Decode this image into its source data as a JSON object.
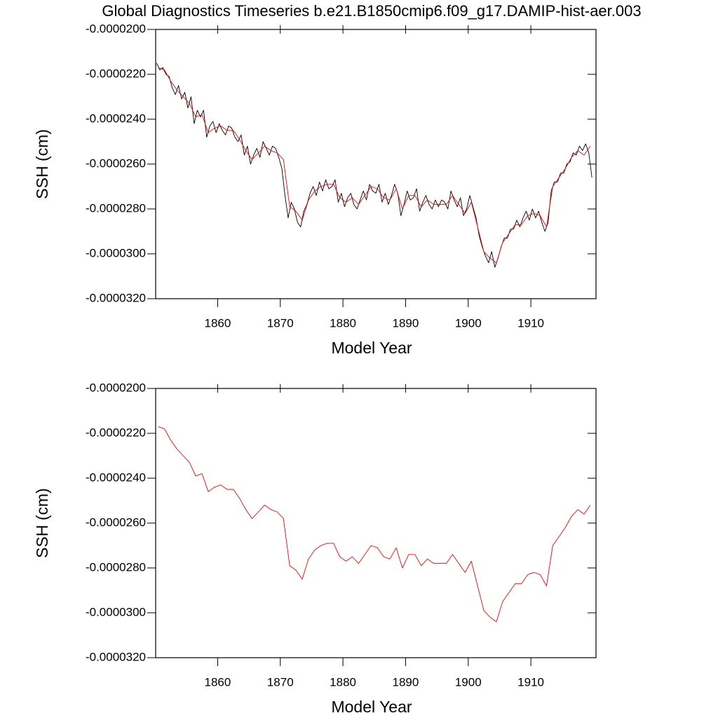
{
  "chart_data": [
    {
      "type": "line",
      "title": "Global Diagnostics Timeseries b.e21.B1850cmip6.f09_g17.DAMIP-hist-aer.003",
      "xlabel": "Model Year",
      "ylabel": "SSH (cm)",
      "xlim": [
        1850.1,
        1920.4
      ],
      "ylim": [
        -3.2e-05,
        -2e-05
      ],
      "xticks": [
        1860,
        1870,
        1880,
        1890,
        1900,
        1910
      ],
      "yticks": [
        {
          "value": -2e-05,
          "label": "-0.0000200"
        },
        {
          "value": -2.2e-05,
          "label": "-0.0000220"
        },
        {
          "value": -2.4e-05,
          "label": "-0.0000240"
        },
        {
          "value": -2.6e-05,
          "label": "-0.0000260"
        },
        {
          "value": -2.8e-05,
          "label": "-0.0000280"
        },
        {
          "value": -3e-05,
          "label": "-0.0000300"
        },
        {
          "value": -3.2e-05,
          "label": "-0.0000320"
        }
      ],
      "series": [
        {
          "color": "#000000",
          "x": [
            1850.25,
            1850.75,
            1851.25,
            1851.75,
            1852.25,
            1852.75,
            1853.25,
            1853.75,
            1854.25,
            1854.75,
            1855.25,
            1855.75,
            1856.25,
            1856.75,
            1857.25,
            1857.75,
            1858.25,
            1858.75,
            1859.25,
            1859.75,
            1860.25,
            1860.75,
            1861.25,
            1861.75,
            1862.25,
            1862.75,
            1863.25,
            1863.75,
            1864.25,
            1864.75,
            1865.25,
            1865.75,
            1866.25,
            1866.75,
            1867.25,
            1867.75,
            1868.25,
            1868.75,
            1869.25,
            1869.75,
            1870.25,
            1870.75,
            1871.25,
            1871.75,
            1872.25,
            1872.75,
            1873.25,
            1873.75,
            1874.25,
            1874.75,
            1875.25,
            1875.75,
            1876.25,
            1876.75,
            1877.25,
            1877.75,
            1878.25,
            1878.75,
            1879.25,
            1879.75,
            1880.25,
            1880.75,
            1881.25,
            1881.75,
            1882.25,
            1882.75,
            1883.25,
            1883.75,
            1884.25,
            1884.75,
            1885.25,
            1885.75,
            1886.25,
            1886.75,
            1887.25,
            1887.75,
            1888.25,
            1888.75,
            1889.25,
            1889.75,
            1890.25,
            1890.75,
            1891.25,
            1891.75,
            1892.25,
            1892.75,
            1893.25,
            1893.75,
            1894.25,
            1894.75,
            1895.25,
            1895.75,
            1896.25,
            1896.75,
            1897.25,
            1897.75,
            1898.25,
            1898.75,
            1899.25,
            1899.75,
            1900.25,
            1900.75,
            1901.25,
            1901.75,
            1902.25,
            1902.75,
            1903.25,
            1903.75,
            1904.25,
            1904.75,
            1905.25,
            1905.75,
            1906.25,
            1906.75,
            1907.25,
            1907.75,
            1908.25,
            1908.75,
            1909.25,
            1909.75,
            1910.25,
            1910.75,
            1911.25,
            1911.75,
            1912.25,
            1912.75,
            1913.25,
            1913.75,
            1914.25,
            1914.75,
            1915.25,
            1915.75,
            1916.25,
            1916.75,
            1917.25,
            1917.75,
            1918.25,
            1918.75,
            1919.25,
            1919.75
          ],
          "values": [
            -2.15e-05,
            -2.18e-05,
            -2.17e-05,
            -2.2e-05,
            -2.21e-05,
            -2.26e-05,
            -2.29e-05,
            -2.25e-05,
            -2.31e-05,
            -2.28e-05,
            -2.35e-05,
            -2.3e-05,
            -2.42e-05,
            -2.36e-05,
            -2.39e-05,
            -2.36e-05,
            -2.48e-05,
            -2.43e-05,
            -2.41e-05,
            -2.46e-05,
            -2.42e-05,
            -2.45e-05,
            -2.47e-05,
            -2.43e-05,
            -2.44e-05,
            -2.48e-05,
            -2.5e-05,
            -2.47e-05,
            -2.56e-05,
            -2.52e-05,
            -2.6e-05,
            -2.56e-05,
            -2.53e-05,
            -2.57e-05,
            -2.5e-05,
            -2.53e-05,
            -2.56e-05,
            -2.52e-05,
            -2.53e-05,
            -2.57e-05,
            -2.62e-05,
            -2.74e-05,
            -2.84e-05,
            -2.77e-05,
            -2.8e-05,
            -2.86e-05,
            -2.88e-05,
            -2.81e-05,
            -2.78e-05,
            -2.73e-05,
            -2.7e-05,
            -2.74e-05,
            -2.68e-05,
            -2.72e-05,
            -2.67e-05,
            -2.71e-05,
            -2.7e-05,
            -2.67e-05,
            -2.77e-05,
            -2.73e-05,
            -2.79e-05,
            -2.75e-05,
            -2.73e-05,
            -2.78e-05,
            -2.8e-05,
            -2.76e-05,
            -2.72e-05,
            -2.76e-05,
            -2.69e-05,
            -2.72e-05,
            -2.73e-05,
            -2.69e-05,
            -2.77e-05,
            -2.73e-05,
            -2.78e-05,
            -2.74e-05,
            -2.69e-05,
            -2.73e-05,
            -2.83e-05,
            -2.78e-05,
            -2.72e-05,
            -2.76e-05,
            -2.75e-05,
            -2.71e-05,
            -2.81e-05,
            -2.77e-05,
            -2.74e-05,
            -2.78e-05,
            -2.8e-05,
            -2.76e-05,
            -2.79e-05,
            -2.76e-05,
            -2.77e-05,
            -2.8e-05,
            -2.72e-05,
            -2.76e-05,
            -2.79e-05,
            -2.75e-05,
            -2.83e-05,
            -2.8e-05,
            -2.74e-05,
            -2.79e-05,
            -2.84e-05,
            -2.92e-05,
            -2.97e-05,
            -3.01e-05,
            -3.04e-05,
            -2.99e-05,
            -3.06e-05,
            -3.02e-05,
            -2.97e-05,
            -2.93e-05,
            -2.93e-05,
            -2.89e-05,
            -2.89e-05,
            -2.85e-05,
            -2.88e-05,
            -2.84e-05,
            -2.81e-05,
            -2.85e-05,
            -2.8e-05,
            -2.84e-05,
            -2.81e-05,
            -2.86e-05,
            -2.9e-05,
            -2.86e-05,
            -2.72e-05,
            -2.68e-05,
            -2.68e-05,
            -2.64e-05,
            -2.64e-05,
            -2.6e-05,
            -2.59e-05,
            -2.55e-05,
            -2.56e-05,
            -2.52e-05,
            -2.54e-05,
            -2.51e-05,
            -2.55e-05,
            -2.66e-05
          ]
        },
        {
          "color": "#ff0000",
          "x": [
            1850.5,
            1851.5,
            1852.5,
            1853.5,
            1854.5,
            1855.5,
            1856.5,
            1857.5,
            1858.5,
            1859.5,
            1860.5,
            1861.5,
            1862.5,
            1863.5,
            1864.5,
            1865.5,
            1866.5,
            1867.5,
            1868.5,
            1869.5,
            1870.5,
            1871.5,
            1872.5,
            1873.5,
            1874.5,
            1875.5,
            1876.5,
            1877.5,
            1878.5,
            1879.5,
            1880.5,
            1881.5,
            1882.5,
            1883.5,
            1884.5,
            1885.5,
            1886.5,
            1887.5,
            1888.5,
            1889.5,
            1890.5,
            1891.5,
            1892.5,
            1893.5,
            1894.5,
            1895.5,
            1896.5,
            1897.5,
            1898.5,
            1899.5,
            1900.5,
            1901.5,
            1902.5,
            1903.5,
            1904.5,
            1905.5,
            1906.5,
            1907.5,
            1908.5,
            1909.5,
            1910.5,
            1911.5,
            1912.5,
            1913.5,
            1914.5,
            1915.5,
            1916.5,
            1917.5,
            1918.5,
            1919.5
          ],
          "values": [
            -2.17e-05,
            -2.18e-05,
            -2.23e-05,
            -2.27e-05,
            -2.3e-05,
            -2.33e-05,
            -2.39e-05,
            -2.38e-05,
            -2.46e-05,
            -2.44e-05,
            -2.43e-05,
            -2.45e-05,
            -2.45e-05,
            -2.49e-05,
            -2.54e-05,
            -2.58e-05,
            -2.55e-05,
            -2.52e-05,
            -2.54e-05,
            -2.55e-05,
            -2.58e-05,
            -2.79e-05,
            -2.81e-05,
            -2.85e-05,
            -2.76e-05,
            -2.72e-05,
            -2.7e-05,
            -2.69e-05,
            -2.69e-05,
            -2.75e-05,
            -2.77e-05,
            -2.75e-05,
            -2.78e-05,
            -2.74e-05,
            -2.7e-05,
            -2.71e-05,
            -2.75e-05,
            -2.76e-05,
            -2.71e-05,
            -2.8e-05,
            -2.74e-05,
            -2.74e-05,
            -2.79e-05,
            -2.76e-05,
            -2.78e-05,
            -2.78e-05,
            -2.78e-05,
            -2.74e-05,
            -2.78e-05,
            -2.82e-05,
            -2.77e-05,
            -2.88e-05,
            -2.99e-05,
            -3.02e-05,
            -3.04e-05,
            -2.95e-05,
            -2.91e-05,
            -2.87e-05,
            -2.87e-05,
            -2.83e-05,
            -2.82e-05,
            -2.83e-05,
            -2.88e-05,
            -2.7e-05,
            -2.66e-05,
            -2.62e-05,
            -2.57e-05,
            -2.54e-05,
            -2.56e-05,
            -2.52e-05
          ]
        }
      ]
    },
    {
      "type": "line",
      "xlabel": "Model Year",
      "ylabel": "SSH (cm)",
      "xlim": [
        1850.1,
        1920.4
      ],
      "ylim": [
        -3.2e-05,
        -2e-05
      ],
      "xticks": [
        1860,
        1870,
        1880,
        1890,
        1900,
        1910
      ],
      "yticks": [
        {
          "value": -2e-05,
          "label": "-0.0000200"
        },
        {
          "value": -2.2e-05,
          "label": "-0.0000220"
        },
        {
          "value": -2.4e-05,
          "label": "-0.0000240"
        },
        {
          "value": -2.6e-05,
          "label": "-0.0000260"
        },
        {
          "value": -2.8e-05,
          "label": "-0.0000280"
        },
        {
          "value": -3e-05,
          "label": "-0.0000300"
        },
        {
          "value": -3.2e-05,
          "label": "-0.0000320"
        }
      ],
      "series": [
        {
          "color": "#ff0000",
          "x": [
            1850.5,
            1851.5,
            1852.5,
            1853.5,
            1854.5,
            1855.5,
            1856.5,
            1857.5,
            1858.5,
            1859.5,
            1860.5,
            1861.5,
            1862.5,
            1863.5,
            1864.5,
            1865.5,
            1866.5,
            1867.5,
            1868.5,
            1869.5,
            1870.5,
            1871.5,
            1872.5,
            1873.5,
            1874.5,
            1875.5,
            1876.5,
            1877.5,
            1878.5,
            1879.5,
            1880.5,
            1881.5,
            1882.5,
            1883.5,
            1884.5,
            1885.5,
            1886.5,
            1887.5,
            1888.5,
            1889.5,
            1890.5,
            1891.5,
            1892.5,
            1893.5,
            1894.5,
            1895.5,
            1896.5,
            1897.5,
            1898.5,
            1899.5,
            1900.5,
            1901.5,
            1902.5,
            1903.5,
            1904.5,
            1905.5,
            1906.5,
            1907.5,
            1908.5,
            1909.5,
            1910.5,
            1911.5,
            1912.5,
            1913.5,
            1914.5,
            1915.5,
            1916.5,
            1917.5,
            1918.5,
            1919.5
          ],
          "values": [
            -2.17e-05,
            -2.18e-05,
            -2.23e-05,
            -2.27e-05,
            -2.3e-05,
            -2.33e-05,
            -2.39e-05,
            -2.38e-05,
            -2.46e-05,
            -2.44e-05,
            -2.43e-05,
            -2.45e-05,
            -2.45e-05,
            -2.49e-05,
            -2.54e-05,
            -2.58e-05,
            -2.55e-05,
            -2.52e-05,
            -2.54e-05,
            -2.55e-05,
            -2.58e-05,
            -2.79e-05,
            -2.81e-05,
            -2.85e-05,
            -2.76e-05,
            -2.72e-05,
            -2.7e-05,
            -2.69e-05,
            -2.69e-05,
            -2.75e-05,
            -2.77e-05,
            -2.75e-05,
            -2.78e-05,
            -2.74e-05,
            -2.7e-05,
            -2.71e-05,
            -2.75e-05,
            -2.76e-05,
            -2.71e-05,
            -2.8e-05,
            -2.74e-05,
            -2.74e-05,
            -2.79e-05,
            -2.76e-05,
            -2.78e-05,
            -2.78e-05,
            -2.78e-05,
            -2.74e-05,
            -2.78e-05,
            -2.82e-05,
            -2.77e-05,
            -2.88e-05,
            -2.99e-05,
            -3.02e-05,
            -3.04e-05,
            -2.95e-05,
            -2.91e-05,
            -2.87e-05,
            -2.87e-05,
            -2.83e-05,
            -2.82e-05,
            -2.83e-05,
            -2.88e-05,
            -2.7e-05,
            -2.66e-05,
            -2.62e-05,
            -2.57e-05,
            -2.54e-05,
            -2.56e-05,
            -2.52e-05
          ]
        }
      ]
    }
  ]
}
